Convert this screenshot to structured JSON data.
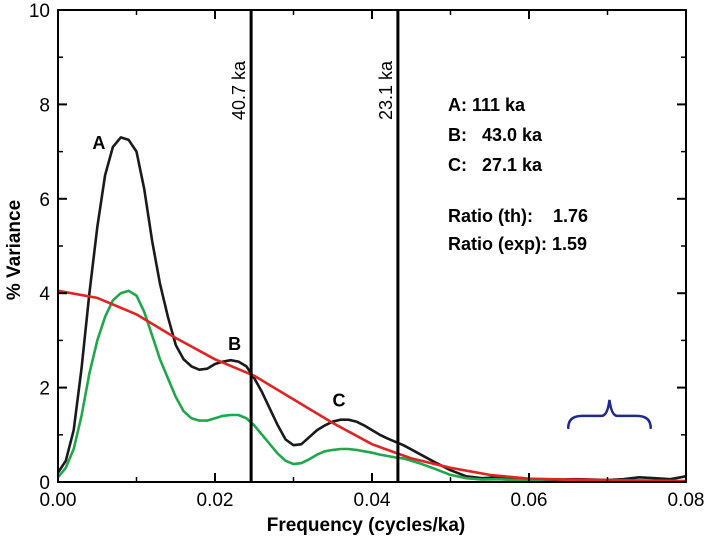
{
  "chart_data": {
    "type": "line",
    "title": "",
    "xlabel": "Frequency (cycles/ka)",
    "ylabel": "% Variance",
    "xlim": [
      0.0,
      0.08
    ],
    "ylim": [
      0,
      10
    ],
    "x_ticks": [
      "0.00",
      "0.02",
      "0.04",
      "0.06",
      "0.08"
    ],
    "y_ticks": [
      "0",
      "2",
      "4",
      "6",
      "8",
      "10"
    ],
    "grid": false,
    "series": [
      {
        "color": "#1a1a1a",
        "x": [
          0.0,
          0.001,
          0.002,
          0.003,
          0.004,
          0.005,
          0.006,
          0.007,
          0.008,
          0.009,
          0.01,
          0.011,
          0.012,
          0.013,
          0.014,
          0.015,
          0.016,
          0.017,
          0.018,
          0.019,
          0.02,
          0.021,
          0.022,
          0.023,
          0.024,
          0.025,
          0.026,
          0.027,
          0.028,
          0.029,
          0.03,
          0.031,
          0.032,
          0.033,
          0.034,
          0.035,
          0.036,
          0.037,
          0.038,
          0.039,
          0.04,
          0.041,
          0.042,
          0.043,
          0.044,
          0.046,
          0.048,
          0.05,
          0.052,
          0.054,
          0.056,
          0.058,
          0.06,
          0.062,
          0.064,
          0.066,
          0.068,
          0.07,
          0.072,
          0.074,
          0.076,
          0.078,
          0.08
        ],
        "y": [
          0.2,
          0.45,
          1.1,
          2.4,
          4.0,
          5.4,
          6.5,
          7.1,
          7.3,
          7.25,
          7.0,
          6.2,
          5.1,
          4.2,
          3.5,
          2.9,
          2.6,
          2.45,
          2.38,
          2.4,
          2.5,
          2.55,
          2.58,
          2.55,
          2.45,
          2.2,
          1.9,
          1.55,
          1.2,
          0.9,
          0.78,
          0.8,
          0.95,
          1.1,
          1.2,
          1.28,
          1.32,
          1.32,
          1.28,
          1.2,
          1.1,
          1.0,
          0.92,
          0.85,
          0.78,
          0.6,
          0.42,
          0.25,
          0.12,
          0.08,
          0.1,
          0.06,
          0.05,
          0.04,
          0.05,
          0.06,
          0.05,
          0.04,
          0.06,
          0.1,
          0.08,
          0.06,
          0.12
        ]
      },
      {
        "color": "#1fa84a",
        "x": [
          0.0,
          0.001,
          0.002,
          0.003,
          0.004,
          0.005,
          0.006,
          0.007,
          0.008,
          0.009,
          0.01,
          0.011,
          0.012,
          0.013,
          0.014,
          0.015,
          0.016,
          0.017,
          0.018,
          0.019,
          0.02,
          0.021,
          0.022,
          0.023,
          0.024,
          0.025,
          0.026,
          0.027,
          0.028,
          0.029,
          0.03,
          0.031,
          0.032,
          0.033,
          0.034,
          0.035,
          0.036,
          0.037,
          0.038,
          0.039,
          0.04,
          0.041,
          0.042,
          0.043,
          0.044,
          0.046,
          0.048,
          0.05,
          0.052,
          0.054,
          0.056,
          0.058,
          0.06,
          0.062,
          0.064
        ],
        "y": [
          0.1,
          0.3,
          0.7,
          1.4,
          2.3,
          3.0,
          3.5,
          3.85,
          4.0,
          4.05,
          3.95,
          3.6,
          3.1,
          2.6,
          2.2,
          1.8,
          1.5,
          1.35,
          1.3,
          1.3,
          1.35,
          1.4,
          1.42,
          1.42,
          1.35,
          1.2,
          1.0,
          0.8,
          0.6,
          0.45,
          0.38,
          0.4,
          0.48,
          0.58,
          0.65,
          0.68,
          0.7,
          0.7,
          0.68,
          0.65,
          0.62,
          0.58,
          0.55,
          0.52,
          0.5,
          0.4,
          0.28,
          0.15,
          0.08,
          0.05,
          0.06,
          0.04,
          0.04,
          0.05,
          0.06
        ]
      },
      {
        "color": "#e02424",
        "x": [
          0.0,
          0.005,
          0.01,
          0.015,
          0.02,
          0.025,
          0.03,
          0.035,
          0.04,
          0.045,
          0.05,
          0.055,
          0.06,
          0.065,
          0.07,
          0.075,
          0.08
        ],
        "y": [
          4.05,
          3.9,
          3.55,
          3.05,
          2.6,
          2.25,
          1.75,
          1.25,
          0.8,
          0.5,
          0.3,
          0.15,
          0.07,
          0.05,
          0.04,
          0.03,
          0.02
        ]
      }
    ],
    "vertical_lines": [
      {
        "x": 0.0246,
        "label": "40.7 ka"
      },
      {
        "x": 0.0433,
        "label": "23.1 ka"
      }
    ],
    "peak_labels": [
      {
        "text": "A",
        "x": 0.0052,
        "y": 7.05
      },
      {
        "text": "B",
        "x": 0.0225,
        "y": 2.8
      },
      {
        "text": "C",
        "x": 0.0358,
        "y": 1.6
      }
    ],
    "annotations": [
      {
        "text": "A: 111 ka"
      },
      {
        "text": "B:   43.0 ka"
      },
      {
        "text": "C:   27.1 ka"
      },
      {
        "text": "Ratio (th):    1.76"
      },
      {
        "text": "Ratio (exp): 1.59"
      }
    ],
    "brace": {
      "color": "#1f2a8a",
      "x_from": 0.065,
      "x_to": 0.0755,
      "y": 1.4
    }
  }
}
